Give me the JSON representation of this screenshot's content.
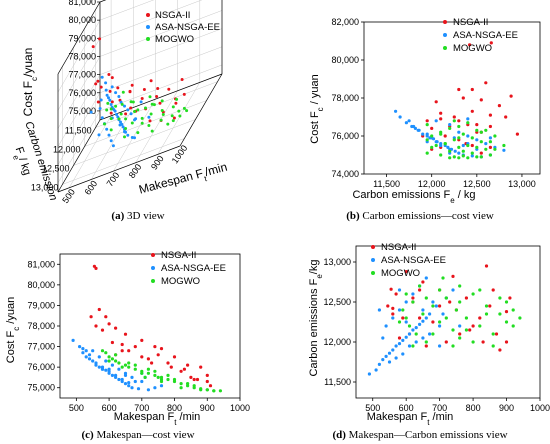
{
  "chart_data": [
    {
      "id": "3d",
      "type": "scatter",
      "projection": "3d",
      "caption_letter": "(a)",
      "caption_text": "3D view",
      "xlabel": "Makespan F",
      "xlabel_sub": "t",
      "xlabel_unit": "/min",
      "ylabel_top": "Carbon emission",
      "ylabel_bottom": "F",
      "ylabel_sub": "e",
      "ylabel_unit": "/ kg",
      "zlabel": "Cost F",
      "zlabel_sub": "c",
      "zlabel_unit": "/yuan",
      "xticks": [
        500,
        600,
        700,
        800,
        900,
        1000
      ],
      "xtick_labels": [
        "500",
        "600",
        "700",
        "800",
        "900",
        "1000"
      ],
      "yticks": [
        11500,
        12000,
        12500,
        13000
      ],
      "ytick_labels": [
        "11,500",
        "12,000",
        "12,500",
        "13,000"
      ],
      "zticks": [
        75000,
        76000,
        77000,
        78000,
        79000,
        80000,
        81000
      ],
      "ztick_labels": [
        "75,000",
        "76,000",
        "77,000",
        "78,000",
        "79,000",
        "80,000",
        "81,000"
      ],
      "xlim": [
        450,
        1000
      ],
      "ylim": [
        11300,
        13200
      ],
      "zlim": [
        74500,
        81000
      ],
      "legend_position": "top-right"
    },
    {
      "id": "ec",
      "type": "scatter",
      "caption_letter": "(b)",
      "caption_text": "Carbon emissions—cost view",
      "xlabel": "Carbon emissions F",
      "xlabel_sub": "e",
      "xlabel_unit": " / kg",
      "ylabel": "Cost F",
      "ylabel_sub": "c",
      "ylabel_unit": " / yuan",
      "xlim": [
        11250,
        13200
      ],
      "ylim": [
        74000,
        82000
      ],
      "xticks": [
        11500,
        12000,
        12500,
        13000
      ],
      "xtick_labels": [
        "11,500",
        "12,000",
        "12,500",
        "13,000"
      ],
      "yticks": [
        74000,
        76000,
        78000,
        80000,
        82000
      ],
      "ytick_labels": [
        "74,000",
        "76,000",
        "78,000",
        "80,000",
        "82,000"
      ],
      "legend_position": "top-right"
    },
    {
      "id": "mc",
      "type": "scatter",
      "caption_letter": "(c)",
      "caption_text": "Makespan—cost view",
      "xlabel": "Makespan F",
      "xlabel_sub": "t",
      "xlabel_unit": " /min",
      "ylabel": "Cost  F",
      "ylabel_sub": "c",
      "ylabel_unit": " /yuan",
      "xlim": [
        450,
        1000
      ],
      "ylim": [
        74500,
        81500
      ],
      "xticks": [
        500,
        600,
        700,
        800,
        900,
        1000
      ],
      "xtick_labels": [
        "500",
        "600",
        "700",
        "800",
        "900",
        "1000"
      ],
      "yticks": [
        75000,
        76000,
        77000,
        78000,
        79000,
        80000,
        81000
      ],
      "ytick_labels": [
        "75,000",
        "76,000",
        "77,000",
        "78,000",
        "79,000",
        "80,000",
        "81,000"
      ],
      "legend_position": "top-right"
    },
    {
      "id": "me",
      "type": "scatter",
      "caption_letter": "(d)",
      "caption_text": "Makespan—Carbon emissions view",
      "xlabel": "Makespan F",
      "xlabel_sub": "t",
      "xlabel_unit": " /min",
      "ylabel": "Carbon emissions F",
      "ylabel_sub": "e",
      "ylabel_unit": "/kg",
      "xlim": [
        450,
        1000
      ],
      "ylim": [
        11300,
        13200
      ],
      "xticks": [
        500,
        600,
        700,
        800,
        900,
        1000
      ],
      "xtick_labels": [
        "500",
        "600",
        "700",
        "800",
        "900",
        "1000"
      ],
      "yticks": [
        11500,
        12000,
        12500,
        13000
      ],
      "ytick_labels": [
        "11,500",
        "12,000",
        "12,500",
        "13,000"
      ],
      "legend_position": "top-left"
    }
  ],
  "series": [
    {
      "name": "NSGA-II",
      "color": "#e8141c",
      "points": [
        [
          555,
          12660,
          80900
        ],
        [
          560,
          12420,
          80800
        ],
        [
          545,
          12450,
          78450
        ],
        [
          570,
          12600,
          78800
        ],
        [
          590,
          12300,
          78450
        ],
        [
          600,
          12880,
          78100
        ],
        [
          620,
          12550,
          77900
        ],
        [
          650,
          12750,
          77600
        ],
        [
          700,
          12450,
          77300
        ],
        [
          740,
          12820,
          77000
        ],
        [
          760,
          12100,
          76900
        ],
        [
          800,
          12200,
          76500
        ],
        [
          840,
          12950,
          76100
        ],
        [
          880,
          11900,
          76000
        ],
        [
          900,
          12380,
          75600
        ],
        [
          610,
          12100,
          77200
        ],
        [
          640,
          12300,
          76800
        ],
        [
          720,
          12000,
          76400
        ],
        [
          780,
          12550,
          76200
        ],
        [
          820,
          12300,
          75800
        ],
        [
          860,
          12650,
          75400
        ],
        [
          580,
          12050,
          77800
        ],
        [
          680,
          12250,
          77000
        ],
        [
          750,
          12400,
          76600
        ],
        [
          900,
          12000,
          75300
        ],
        [
          620,
          12500,
          76600
        ],
        [
          830,
          12000,
          75900
        ],
        [
          700,
          12650,
          76500
        ],
        [
          870,
          12100,
          75400
        ],
        [
          660,
          11950,
          76800
        ],
        [
          560,
          12350,
          78000
        ],
        [
          730,
          12500,
          76200
        ],
        [
          790,
          12150,
          76000
        ],
        [
          850,
          12450,
          75500
        ],
        [
          910,
          12550,
          75100
        ],
        [
          640,
          12650,
          77100
        ]
      ]
    },
    {
      "name": "ASA-NSGA-EE",
      "color": "#1e90ff",
      "points": [
        [
          490,
          11600,
          77300
        ],
        [
          510,
          11650,
          77000
        ],
        [
          520,
          11720,
          76700
        ],
        [
          530,
          11780,
          76500
        ],
        [
          540,
          11820,
          76400
        ],
        [
          550,
          11860,
          76300
        ],
        [
          560,
          11900,
          76100
        ],
        [
          570,
          11950,
          76000
        ],
        [
          580,
          11980,
          75900
        ],
        [
          590,
          12020,
          75850
        ],
        [
          600,
          12060,
          75700
        ],
        [
          610,
          12100,
          75600
        ],
        [
          620,
          12150,
          75500
        ],
        [
          630,
          12180,
          75400
        ],
        [
          640,
          12220,
          75300
        ],
        [
          650,
          12260,
          75200
        ],
        [
          660,
          12300,
          75100
        ],
        [
          670,
          12350,
          75000
        ],
        [
          690,
          12450,
          74950
        ],
        [
          720,
          12550,
          74900
        ],
        [
          540,
          12200,
          76600
        ],
        [
          560,
          12300,
          76200
        ],
        [
          580,
          12400,
          76000
        ],
        [
          600,
          12500,
          75800
        ],
        [
          620,
          12600,
          75600
        ],
        [
          640,
          12700,
          75400
        ],
        [
          660,
          12800,
          75250
        ],
        [
          550,
          11750,
          76800
        ],
        [
          570,
          11800,
          76500
        ],
        [
          590,
          11850,
          76300
        ],
        [
          610,
          11950,
          76100
        ],
        [
          630,
          12000,
          75900
        ],
        [
          650,
          12050,
          75700
        ],
        [
          670,
          12100,
          75500
        ],
        [
          700,
          12200,
          75300
        ],
        [
          520,
          12400,
          76900
        ],
        [
          600,
          12250,
          75900
        ],
        [
          680,
          12500,
          75300
        ],
        [
          700,
          11950,
          75700
        ],
        [
          740,
          12650,
          75000
        ],
        [
          760,
          12200,
          75100
        ],
        [
          530,
          12050,
          76800
        ],
        [
          580,
          12650,
          75900
        ],
        [
          650,
          12400,
          75600
        ],
        [
          710,
          12350,
          75500
        ]
      ]
    },
    {
      "name": "MOGWO",
      "color": "#22dd22",
      "points": [
        [
          590,
          12400,
          76700
        ],
        [
          600,
          12300,
          76500
        ],
        [
          610,
          12200,
          76400
        ],
        [
          620,
          12500,
          76300
        ],
        [
          630,
          12100,
          76200
        ],
        [
          650,
          12350,
          76100
        ],
        [
          660,
          12000,
          76000
        ],
        [
          680,
          12450,
          75900
        ],
        [
          700,
          12250,
          75800
        ],
        [
          720,
          12550,
          75700
        ],
        [
          740,
          12150,
          75600
        ],
        [
          750,
          12400,
          75500
        ],
        [
          760,
          12050,
          75500
        ],
        [
          780,
          12300,
          75400
        ],
        [
          800,
          12600,
          75300
        ],
        [
          820,
          12200,
          75200
        ],
        [
          840,
          12450,
          75100
        ],
        [
          860,
          12100,
          75000
        ],
        [
          880,
          12350,
          74950
        ],
        [
          900,
          12250,
          74900
        ],
        [
          920,
          12400,
          74850
        ],
        [
          940,
          12300,
          74850
        ],
        [
          600,
          12600,
          76300
        ],
        [
          640,
          12700,
          76000
        ],
        [
          700,
          12650,
          75700
        ],
        [
          760,
          12700,
          75300
        ],
        [
          820,
          12650,
          75000
        ],
        [
          620,
          11950,
          76600
        ],
        [
          680,
          12100,
          76100
        ],
        [
          740,
          11950,
          75800
        ],
        [
          800,
          12000,
          75400
        ],
        [
          860,
          11950,
          75100
        ],
        [
          900,
          12500,
          74900
        ],
        [
          660,
          12550,
          76200
        ],
        [
          720,
          12300,
          75900
        ],
        [
          780,
          12150,
          75600
        ],
        [
          840,
          12350,
          75200
        ],
        [
          710,
          12800,
          75500
        ],
        [
          580,
          12250,
          76800
        ],
        [
          760,
          12500,
          75400
        ],
        [
          880,
          12550,
          74900
        ],
        [
          920,
          12200,
          74850
        ]
      ]
    }
  ]
}
